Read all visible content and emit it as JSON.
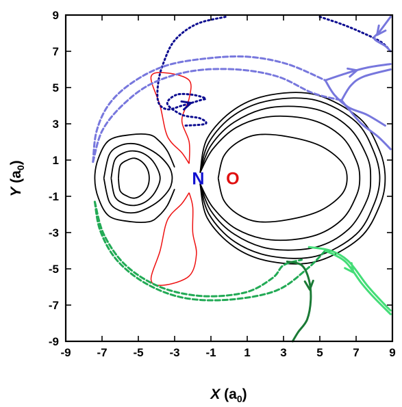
{
  "chart_data": {
    "type": "line",
    "title": "",
    "xlabel": {
      "var": "X",
      "unit_open": " (a",
      "unit_sub": "0",
      "unit_close": ")"
    },
    "ylabel": {
      "var": "Y",
      "unit_open": " (a",
      "unit_sub": "0",
      "unit_close": ")"
    },
    "xlim": [
      -9,
      9
    ],
    "ylim": [
      -9,
      9
    ],
    "xticks": [
      "-9",
      "-7",
      "-5",
      "-3",
      "-1",
      "1",
      "3",
      "5",
      "7",
      "9"
    ],
    "yticks": [
      "9",
      "7",
      "5",
      "3",
      "1",
      "-1",
      "-3",
      "-5",
      "-7",
      "-9"
    ],
    "atoms": [
      {
        "label": "N",
        "x": -1.7,
        "y": 0,
        "color": "#1010d0"
      },
      {
        "label": "O",
        "x": 0.2,
        "y": 0,
        "color": "#e01010"
      }
    ],
    "contours": [
      {
        "color": "#000000",
        "points": [
          [
            -1.6,
            0.3
          ],
          [
            -1.2,
            2.2
          ],
          [
            0.3,
            3.8
          ],
          [
            2.3,
            4.6
          ],
          [
            4.8,
            4.6
          ],
          [
            7.2,
            3.3
          ],
          [
            8.3,
            1.5
          ],
          [
            8.6,
            0
          ],
          [
            8.3,
            -1.5
          ],
          [
            7.2,
            -3.3
          ],
          [
            4.8,
            -4.6
          ],
          [
            2.3,
            -4.6
          ],
          [
            0.3,
            -3.8
          ],
          [
            -1.2,
            -2.2
          ],
          [
            -1.6,
            -0.3
          ]
        ]
      },
      {
        "color": "#000000",
        "points": [
          [
            -1.6,
            0.3
          ],
          [
            -1.1,
            2.0
          ],
          [
            0.3,
            3.5
          ],
          [
            2.3,
            4.3
          ],
          [
            4.8,
            4.3
          ],
          [
            7.0,
            3.1
          ],
          [
            8.0,
            1.4
          ],
          [
            8.3,
            0
          ],
          [
            8.0,
            -1.4
          ],
          [
            7.0,
            -3.1
          ],
          [
            4.8,
            -4.3
          ],
          [
            2.3,
            -4.3
          ],
          [
            0.3,
            -3.5
          ],
          [
            -1.1,
            -2.0
          ],
          [
            -1.6,
            -0.3
          ]
        ]
      },
      {
        "color": "#000000",
        "points": [
          [
            -1.6,
            0.3
          ],
          [
            -1.0,
            1.8
          ],
          [
            0.3,
            3.1
          ],
          [
            2.3,
            3.9
          ],
          [
            4.8,
            3.8
          ],
          [
            6.6,
            2.8
          ],
          [
            7.6,
            1.2
          ],
          [
            7.8,
            0
          ],
          [
            7.6,
            -1.2
          ],
          [
            6.6,
            -2.8
          ],
          [
            4.8,
            -3.8
          ],
          [
            2.3,
            -3.9
          ],
          [
            0.3,
            -3.1
          ],
          [
            -1.0,
            -1.8
          ],
          [
            -1.6,
            -0.3
          ]
        ]
      },
      {
        "color": "#000000",
        "points": [
          [
            -1.6,
            0.3
          ],
          [
            -0.9,
            1.6
          ],
          [
            0.4,
            2.8
          ],
          [
            2.3,
            3.4
          ],
          [
            4.6,
            3.2
          ],
          [
            6.2,
            2.3
          ],
          [
            7.0,
            1.0
          ],
          [
            7.2,
            0
          ],
          [
            7.0,
            -1.0
          ],
          [
            6.2,
            -2.3
          ],
          [
            4.6,
            -3.2
          ],
          [
            2.3,
            -3.4
          ],
          [
            0.4,
            -2.8
          ],
          [
            -0.9,
            -1.6
          ],
          [
            -1.6,
            -0.3
          ]
        ]
      },
      {
        "color": "#000000",
        "points": [
          [
            -0.6,
            0
          ],
          [
            -0.3,
            1.2
          ],
          [
            0.5,
            2.0
          ],
          [
            1.6,
            2.4
          ],
          [
            3.2,
            2.3
          ],
          [
            5.0,
            1.8
          ],
          [
            6.2,
            0.9
          ],
          [
            6.5,
            0
          ],
          [
            6.2,
            -0.9
          ],
          [
            5.0,
            -1.8
          ],
          [
            3.2,
            -2.3
          ],
          [
            1.6,
            -2.4
          ],
          [
            0.5,
            -2.0
          ],
          [
            -0.3,
            -1.2
          ],
          [
            -0.6,
            0
          ]
        ]
      },
      {
        "color": "#000000",
        "points": [
          [
            -6.9,
            0
          ],
          [
            -6.6,
            1.3
          ],
          [
            -6.0,
            1.8
          ],
          [
            -5.2,
            1.9
          ],
          [
            -4.4,
            1.6
          ],
          [
            -3.7,
            1.1
          ],
          [
            -3.2,
            0.4
          ],
          [
            -3.2,
            -0.4
          ],
          [
            -3.7,
            -1.1
          ],
          [
            -4.4,
            -1.6
          ],
          [
            -5.2,
            -1.9
          ],
          [
            -6.0,
            -1.8
          ],
          [
            -6.6,
            -1.3
          ],
          [
            -6.9,
            0
          ]
        ]
      },
      {
        "color": "#000000",
        "points": [
          [
            -6.5,
            0
          ],
          [
            -6.3,
            1.0
          ],
          [
            -5.8,
            1.4
          ],
          [
            -5.2,
            1.5
          ],
          [
            -4.6,
            1.3
          ],
          [
            -4.1,
            0.8
          ],
          [
            -3.8,
            0
          ],
          [
            -4.1,
            -0.8
          ],
          [
            -4.6,
            -1.3
          ],
          [
            -5.2,
            -1.5
          ],
          [
            -5.8,
            -1.4
          ],
          [
            -6.3,
            -1.0
          ],
          [
            -6.5,
            0
          ]
        ]
      },
      {
        "color": "#000000",
        "points": [
          [
            -6.1,
            0
          ],
          [
            -6.0,
            0.7
          ],
          [
            -5.6,
            1.0
          ],
          [
            -5.2,
            1.1
          ],
          [
            -4.8,
            0.9
          ],
          [
            -4.5,
            0.5
          ],
          [
            -4.4,
            0
          ],
          [
            -4.5,
            -0.5
          ],
          [
            -4.8,
            -0.9
          ],
          [
            -5.2,
            -1.1
          ],
          [
            -5.6,
            -1.0
          ],
          [
            -6.0,
            -0.7
          ],
          [
            -6.1,
            0
          ]
        ]
      },
      {
        "color": "#000000",
        "points": [
          [
            -3.0,
            0.6
          ],
          [
            -3.4,
            1.5
          ],
          [
            -3.9,
            2.1
          ],
          [
            -4.4,
            2.4
          ],
          [
            -5.4,
            2.4
          ],
          [
            -6.6,
            2.1
          ],
          [
            -7.2,
            1.1
          ],
          [
            -7.4,
            0
          ],
          [
            -7.2,
            -1.1
          ],
          [
            -6.6,
            -2.1
          ],
          [
            -5.4,
            -2.4
          ],
          [
            -4.4,
            -2.4
          ],
          [
            -3.9,
            -2.1
          ],
          [
            -3.4,
            -1.5
          ],
          [
            -3.0,
            -0.6
          ]
        ]
      },
      {
        "color": "#ee1111",
        "points": [
          [
            -2.2,
            0.8
          ],
          [
            -2.6,
            1.4
          ],
          [
            -3.2,
            2.0
          ],
          [
            -3.5,
            2.6
          ],
          [
            -3.8,
            4.0
          ],
          [
            -4.3,
            5.6
          ],
          [
            -3.4,
            5.8
          ],
          [
            -2.2,
            5.4
          ],
          [
            -2.2,
            4.4
          ],
          [
            -2.6,
            3.2
          ],
          [
            -2.2,
            2.0
          ],
          [
            -2.2,
            0.8
          ]
        ]
      },
      {
        "color": "#ee1111",
        "points": [
          [
            -2.2,
            -0.8
          ],
          [
            -2.6,
            -1.4
          ],
          [
            -3.2,
            -2.0
          ],
          [
            -3.5,
            -2.6
          ],
          [
            -3.8,
            -4.0
          ],
          [
            -4.3,
            -5.6
          ],
          [
            -3.6,
            -5.9
          ],
          [
            -2.2,
            -5.4
          ],
          [
            -1.8,
            -4.2
          ],
          [
            -2.0,
            -3.0
          ],
          [
            -2.0,
            -1.6
          ],
          [
            -2.2,
            -0.8
          ]
        ]
      }
    ],
    "series": [
      {
        "color": "#0b0b90",
        "style": "dotted",
        "arrow": true,
        "points": [
          [
            -0.2,
            8.9
          ],
          [
            -1.8,
            8.5
          ],
          [
            -3.0,
            7.6
          ],
          [
            -3.6,
            6.4
          ],
          [
            -3.9,
            5.3
          ],
          [
            -3.9,
            4.2
          ],
          [
            -3.4,
            3.8
          ],
          [
            -2.6,
            4.0
          ],
          [
            -1.6,
            4.3
          ],
          [
            -1.3,
            4.4
          ],
          [
            -2.0,
            4.6
          ],
          [
            -2.9,
            4.6
          ],
          [
            -3.4,
            4.1
          ],
          [
            -2.6,
            3.5
          ],
          [
            -1.6,
            3.3
          ],
          [
            -1.3,
            3.0
          ],
          [
            -2.4,
            2.9
          ]
        ]
      },
      {
        "color": "#0b0b90",
        "style": "dotted",
        "arrow": false,
        "points": [
          [
            5.0,
            8.9
          ],
          [
            6.2,
            8.5
          ],
          [
            7.4,
            8.0
          ],
          [
            8.4,
            7.5
          ],
          [
            8.9,
            7.0
          ]
        ]
      },
      {
        "color": "#7777dd",
        "style": "dashed",
        "arrow": false,
        "points": [
          [
            -7.5,
            0.9
          ],
          [
            -7.3,
            2.6
          ],
          [
            -6.6,
            4.1
          ],
          [
            -5.3,
            5.3
          ],
          [
            -3.5,
            6.2
          ],
          [
            -1.3,
            6.6
          ],
          [
            1.0,
            6.7
          ],
          [
            3.2,
            6.3
          ],
          [
            5.3,
            5.4
          ]
        ]
      },
      {
        "color": "#7777dd",
        "style": "dashed",
        "arrow": false,
        "points": [
          [
            -7.5,
            0.9
          ],
          [
            -7.0,
            2.6
          ],
          [
            -5.9,
            4.0
          ],
          [
            -4.3,
            5.2
          ],
          [
            -2.1,
            5.9
          ],
          [
            0.4,
            6.0
          ],
          [
            2.7,
            5.6
          ],
          [
            4.6,
            4.7
          ],
          [
            6.2,
            4.3
          ]
        ]
      },
      {
        "color": "#7777dd",
        "style": "solid",
        "arrow": true,
        "points": [
          [
            8.9,
            8.9
          ],
          [
            8.3,
            8.1
          ],
          [
            8.0,
            7.7
          ],
          [
            8.6,
            7.3
          ],
          [
            8.9,
            7.0
          ]
        ]
      },
      {
        "color": "#7777dd",
        "style": "solid",
        "arrow": true,
        "points": [
          [
            5.3,
            5.4
          ],
          [
            6.5,
            5.8
          ],
          [
            7.6,
            6.1
          ],
          [
            8.9,
            6.3
          ]
        ]
      },
      {
        "color": "#7777dd",
        "style": "solid",
        "arrow": false,
        "points": [
          [
            6.2,
            4.3
          ],
          [
            6.7,
            5.1
          ],
          [
            7.4,
            5.6
          ],
          [
            8.9,
            6.0
          ]
        ]
      },
      {
        "color": "#7777dd",
        "style": "solid",
        "arrow": false,
        "points": [
          [
            5.3,
            5.4
          ],
          [
            5.8,
            4.6
          ],
          [
            6.6,
            3.9
          ],
          [
            7.6,
            3.5
          ],
          [
            8.6,
            2.9
          ]
        ]
      },
      {
        "color": "#7777dd",
        "style": "solid",
        "arrow": false,
        "points": [
          [
            6.2,
            4.3
          ],
          [
            6.6,
            3.8
          ],
          [
            7.3,
            3.0
          ],
          [
            8.2,
            2.3
          ],
          [
            8.9,
            1.6
          ]
        ]
      },
      {
        "color": "#22aa55",
        "style": "dashed",
        "arrow": false,
        "points": [
          [
            -7.4,
            -1.3
          ],
          [
            -7.1,
            -2.9
          ],
          [
            -6.2,
            -4.5
          ],
          [
            -4.6,
            -5.8
          ],
          [
            -2.5,
            -6.6
          ],
          [
            0.0,
            -6.7
          ],
          [
            2.6,
            -6.2
          ],
          [
            4.3,
            -5.0
          ],
          [
            5.3,
            -4.0
          ]
        ]
      },
      {
        "color": "#22aa55",
        "style": "dashed",
        "arrow": false,
        "points": [
          [
            -7.4,
            -1.3
          ],
          [
            -6.9,
            -3.1
          ],
          [
            -5.7,
            -4.8
          ],
          [
            -3.8,
            -6.0
          ],
          [
            -1.5,
            -6.5
          ],
          [
            0.9,
            -6.3
          ],
          [
            2.4,
            -5.5
          ],
          [
            3.0,
            -4.8
          ],
          [
            4.0,
            -4.5
          ]
        ]
      },
      {
        "color": "#44dd77",
        "style": "solid",
        "arrow": true,
        "points": [
          [
            5.3,
            -4.0
          ],
          [
            6.4,
            -4.6
          ],
          [
            7.3,
            -5.8
          ],
          [
            8.0,
            -6.6
          ],
          [
            8.9,
            -7.5
          ]
        ]
      },
      {
        "color": "#44dd77",
        "style": "solid",
        "arrow": false,
        "points": [
          [
            4.4,
            -3.8
          ],
          [
            5.6,
            -4.0
          ],
          [
            6.6,
            -4.6
          ],
          [
            7.6,
            -5.9
          ],
          [
            8.5,
            -6.9
          ],
          [
            8.9,
            -7.3
          ]
        ]
      },
      {
        "color": "#1a7a35",
        "style": "solid",
        "arrow": true,
        "points": [
          [
            3.2,
            -4.6
          ],
          [
            4.0,
            -4.8
          ],
          [
            4.4,
            -5.6
          ],
          [
            4.5,
            -6.7
          ],
          [
            4.3,
            -7.8
          ],
          [
            3.8,
            -8.5
          ],
          [
            3.5,
            -9.0
          ]
        ]
      }
    ]
  }
}
